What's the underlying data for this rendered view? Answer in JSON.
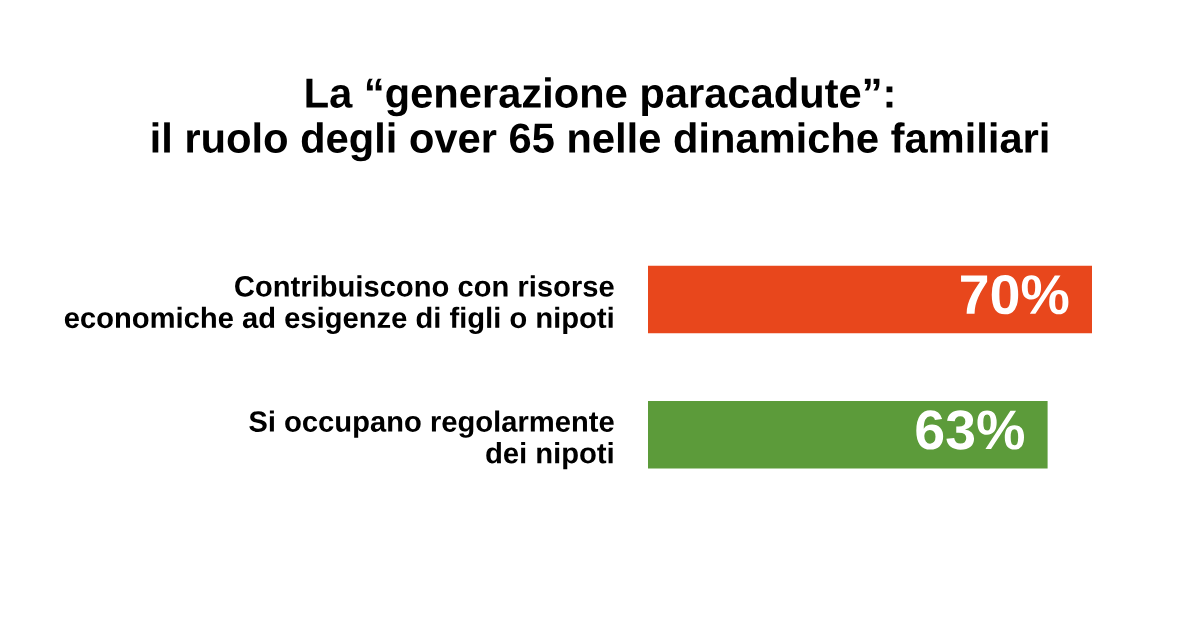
{
  "chart_data": {
    "type": "bar",
    "orientation": "horizontal",
    "title": "La “generazione paracadute”:\nil ruolo degli over 65 nelle dinamiche familiari",
    "categories": [
      "Contribuiscono con risorse\neconomiche ad esigenze di figli o nipoti",
      "Si occupano regolarmente\ndei nipoti"
    ],
    "values": [
      70,
      63
    ],
    "colors": [
      "#e8471c",
      "#5c9b3a"
    ],
    "value_labels": [
      "70%",
      "63%"
    ],
    "xlim": [
      0,
      70
    ],
    "tick_labels": "y",
    "grid": false,
    "legend": false
  }
}
